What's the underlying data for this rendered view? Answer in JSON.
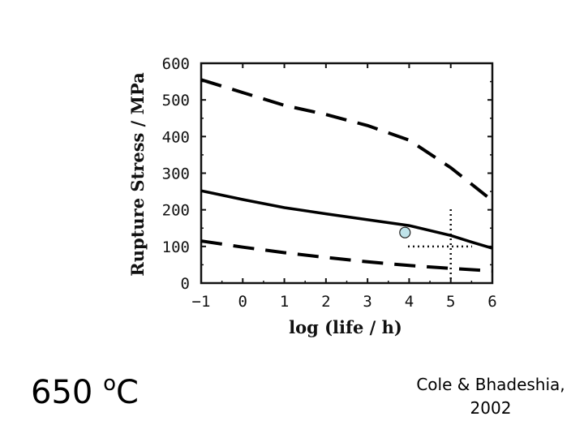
{
  "chart_data": {
    "type": "line",
    "xlabel": "log (life / h)",
    "ylabel": "Rupture Stress / MPa",
    "xlim": [
      -1,
      6
    ],
    "ylim": [
      0,
      600
    ],
    "x_ticks": [
      "−1",
      "0",
      "1",
      "2",
      "3",
      "4",
      "5",
      "6"
    ],
    "y_ticks": [
      "0",
      "100",
      "200",
      "300",
      "400",
      "500",
      "600"
    ],
    "grid": false,
    "series": [
      {
        "style": "solid",
        "x": [
          -1,
          0,
          1,
          2,
          3,
          4,
          5,
          5.5,
          6
        ],
        "y": [
          252,
          228,
          206,
          189,
          173,
          157,
          130,
          112,
          95
        ]
      },
      {
        "style": "dashed",
        "x": [
          -1,
          0,
          1,
          2,
          3,
          4,
          5,
          5.5,
          6
        ],
        "y": [
          555,
          520,
          485,
          460,
          430,
          390,
          315,
          270,
          225
        ]
      },
      {
        "style": "dashed",
        "x": [
          -1,
          0,
          1,
          2,
          3,
          4,
          5,
          6
        ],
        "y": [
          115,
          98,
          83,
          70,
          58,
          48,
          40,
          33
        ]
      }
    ],
    "point": {
      "x": 3.9,
      "y": 138,
      "color": "#bfe3ea"
    },
    "reference_lines": {
      "x": 5,
      "y": 100,
      "style": "dotted"
    }
  },
  "annotations": {
    "temperature_value": "650 ",
    "temperature_degree": "o",
    "temperature_unit": "C",
    "citation_line1": "Cole & Bhadeshia,",
    "citation_line2": "2002"
  }
}
